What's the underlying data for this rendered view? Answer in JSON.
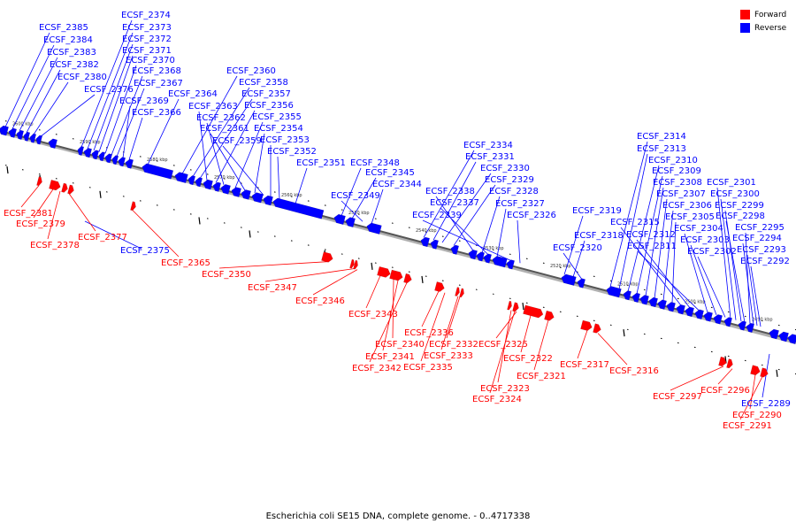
{
  "caption": "Escherichia coli SE15 DNA, complete genome. - 0..4717338",
  "legend": {
    "forward": {
      "label": "Forward",
      "color": "#ff0000"
    },
    "reverse": {
      "label": "Reverse",
      "color": "#0000ff"
    }
  },
  "ticks": [
    {
      "label": "2600 kbp",
      "pos": 2600
    },
    {
      "label": "2590 kbp",
      "pos": 2590
    },
    {
      "label": "2580 kbp",
      "pos": 2580
    },
    {
      "label": "2570 kbp",
      "pos": 2570
    },
    {
      "label": "2560 kbp",
      "pos": 2560
    },
    {
      "label": "2550 kbp",
      "pos": 2550
    },
    {
      "label": "2540 kbp",
      "pos": 2540
    },
    {
      "label": "2530 kbp",
      "pos": 2530
    },
    {
      "label": "2520 kbp",
      "pos": 2520
    },
    {
      "label": "2510 kbp",
      "pos": 2510
    },
    {
      "label": "2500 kbp",
      "pos": 2500
    },
    {
      "label": "2490 kbp",
      "pos": 2490
    }
  ],
  "reverse_labels": [
    "ECSF_2385",
    "ECSF_2384",
    "ECSF_2383",
    "ECSF_2382",
    "ECSF_2380",
    "ECSF_2376",
    "ECSF_2374",
    "ECSF_2373",
    "ECSF_2372",
    "ECSF_2371",
    "ECSF_2370",
    "ECSF_2368",
    "ECSF_2367",
    "ECSF_2369",
    "ECSF_2366",
    "ECSF_2364",
    "ECSF_2360",
    "ECSF_2358",
    "ECSF_2357",
    "ECSF_2363",
    "ECSF_2356",
    "ECSF_2362",
    "ECSF_2355",
    "ECSF_2361",
    "ECSF_2354",
    "ECSF_2359",
    "ECSF_2353",
    "ECSF_2352",
    "ECSF_2351",
    "ECSF_2348",
    "ECSF_2345",
    "ECSF_2344",
    "ECSF_2349",
    "ECSF_2334",
    "ECSF_2331",
    "ECSF_2330",
    "ECSF_2329",
    "ECSF_2338",
    "ECSF_2328",
    "ECSF_2337",
    "ECSF_2327",
    "ECSF_2339",
    "ECSF_2326",
    "ECSF_2319",
    "ECSF_2318",
    "ECSF_2320",
    "ECSF_2314",
    "ECSF_2313",
    "ECSF_2310",
    "ECSF_2309",
    "ECSF_2308",
    "ECSF_2307",
    "ECSF_2306",
    "ECSF_2305",
    "ECSF_2315",
    "ECSF_2312",
    "ECSF_2311",
    "ECSF_2304",
    "ECSF_2303",
    "ECSF_2302",
    "ECSF_2301",
    "ECSF_2300",
    "ECSF_2299",
    "ECSF_2298",
    "ECSF_2295",
    "ECSF_2294",
    "ECSF_2293",
    "ECSF_2292",
    "ECSF_2375",
    "ECSF_2289"
  ],
  "forward_labels": [
    "ECSF_2381",
    "ECSF_2379",
    "ECSF_2378",
    "ECSF_2377",
    "ECSF_2365",
    "ECSF_2350",
    "ECSF_2347",
    "ECSF_2346",
    "ECSF_2343",
    "ECSF_2340",
    "ECSF_2341",
    "ECSF_2342",
    "ECSF_2336",
    "ECSF_2332",
    "ECSF_2333",
    "ECSF_2335",
    "ECSF_2325",
    "ECSF_2322",
    "ECSF_2321",
    "ECSF_2323",
    "ECSF_2324",
    "ECSF_2317",
    "ECSF_2316",
    "ECSF_2297",
    "ECSF_2296",
    "ECSF_2290",
    "ECSF_2291"
  ]
}
